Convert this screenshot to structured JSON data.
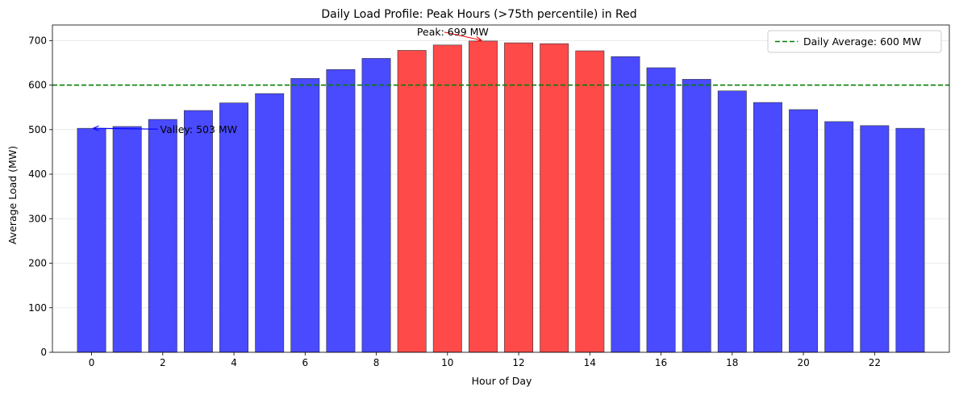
{
  "chart_data": {
    "type": "bar",
    "title": "Daily Load Profile: Peak Hours (>75th percentile) in Red",
    "xlabel": "Hour of Day",
    "ylabel": "Average Load (MW)",
    "x": [
      0,
      1,
      2,
      3,
      4,
      5,
      6,
      7,
      8,
      9,
      10,
      11,
      12,
      13,
      14,
      15,
      16,
      17,
      18,
      19,
      20,
      21,
      22,
      23
    ],
    "values": [
      503,
      507,
      523,
      543,
      560,
      581,
      615,
      635,
      660,
      678,
      690,
      699,
      695,
      693,
      677,
      664,
      639,
      613,
      587,
      561,
      545,
      518,
      509,
      503
    ],
    "peak_hours": [
      9,
      10,
      11,
      12,
      13,
      14
    ],
    "colors": {
      "normal": "#4a4aff",
      "peak": "#ff4a4a",
      "average_line": "#008000",
      "valley_arrow": "#0000ff",
      "peak_arrow": "#ff0000"
    },
    "xlim": [
      -1.1,
      24.1
    ],
    "ylim": [
      0,
      735
    ],
    "xticks": [
      0,
      2,
      4,
      6,
      8,
      10,
      12,
      14,
      16,
      18,
      20,
      22
    ],
    "yticks": [
      0,
      100,
      200,
      300,
      400,
      500,
      600,
      700
    ],
    "grid": "y",
    "average_line": {
      "value": 600,
      "label": "Daily Average: 600 MW"
    },
    "annotations": {
      "peak": {
        "text": "Peak: 699 MW",
        "x": 11,
        "y": 699
      },
      "valley": {
        "text": "Valley: 503 MW",
        "x": 0,
        "y": 503
      }
    },
    "legend_position": "upper right"
  }
}
